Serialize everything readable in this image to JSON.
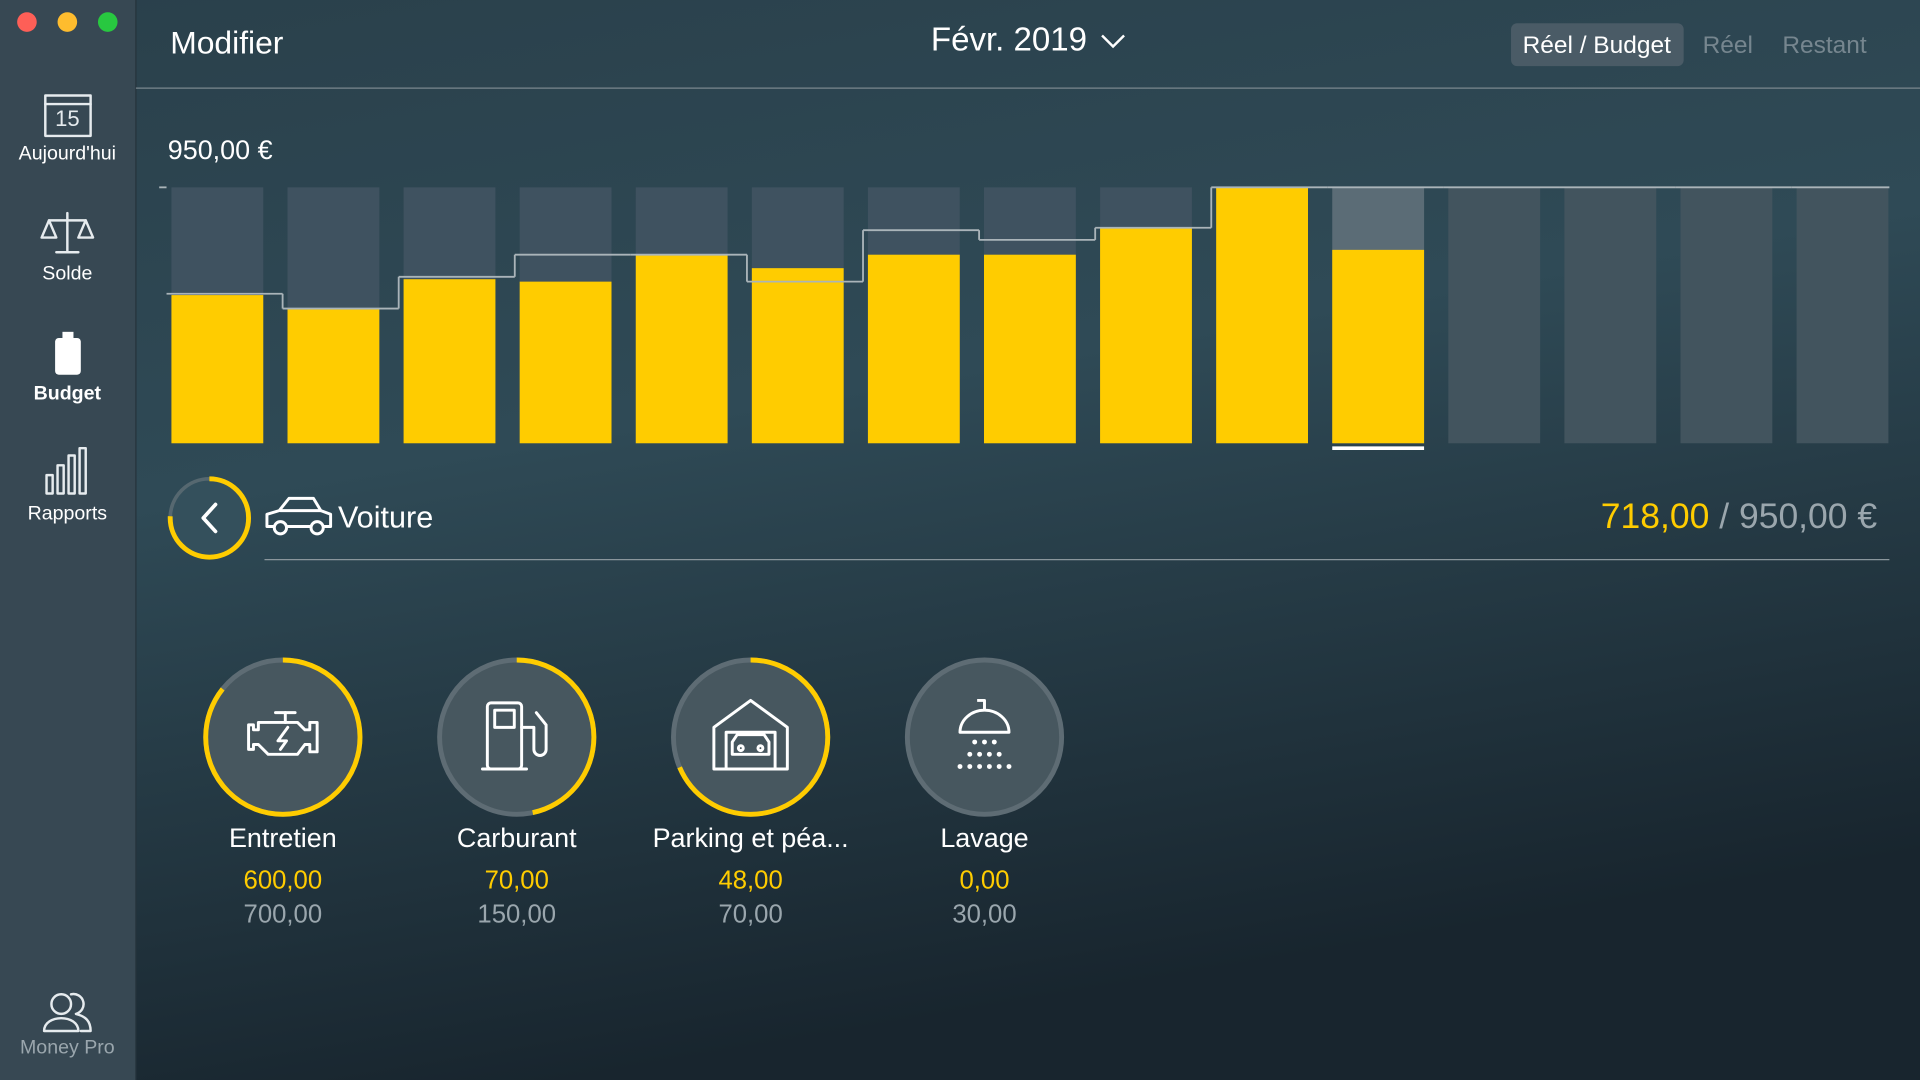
{
  "sidebar": {
    "items": [
      {
        "label": "Aujourd'hui",
        "icon_text": "15"
      },
      {
        "label": "Solde"
      },
      {
        "label": "Budget"
      },
      {
        "label": "Rapports"
      }
    ],
    "footer": "Money Pro"
  },
  "header": {
    "edit": "Modifier",
    "period": "Févr. 2019",
    "tabs": [
      "Réel / Budget",
      "Réel",
      "Restant"
    ]
  },
  "chart_data": {
    "type": "bar",
    "ylim": [
      0,
      950
    ],
    "yticks": [
      {
        "value": 950,
        "label": "950,00 €"
      }
    ],
    "series": [
      {
        "values": [
          550,
          500,
          609,
          600,
          700,
          650,
          700,
          700,
          800,
          950,
          718,
          null,
          null,
          null,
          null
        ],
        "color": "#ffcc00"
      },
      {
        "values": [
          555,
          500,
          618,
          700,
          700,
          600,
          791,
          755,
          800,
          950,
          950,
          950,
          950,
          950,
          950
        ],
        "color": "#aab4b9",
        "style": "step"
      }
    ]
  },
  "category": {
    "name": "Voiture",
    "spent": {
      "value": 718,
      "label": "718,00"
    },
    "separator": "/",
    "budget": {
      "value": 950,
      "label": "950,00 €"
    }
  },
  "subcategories": [
    {
      "name": "Entretien",
      "spent": {
        "value": 600,
        "label": "600,00"
      },
      "budget": {
        "value": 700,
        "label": "700,00"
      }
    },
    {
      "name": "Carburant",
      "spent": {
        "value": 70,
        "label": "70,00"
      },
      "budget": {
        "value": 150,
        "label": "150,00"
      }
    },
    {
      "name": "Parking et péa...",
      "spent": {
        "value": 48,
        "label": "48,00"
      },
      "budget": {
        "value": 70,
        "label": "70,00"
      }
    },
    {
      "name": "Lavage",
      "spent": {
        "value": 0,
        "label": "0,00"
      },
      "budget": {
        "value": 30,
        "label": "30,00"
      }
    }
  ]
}
